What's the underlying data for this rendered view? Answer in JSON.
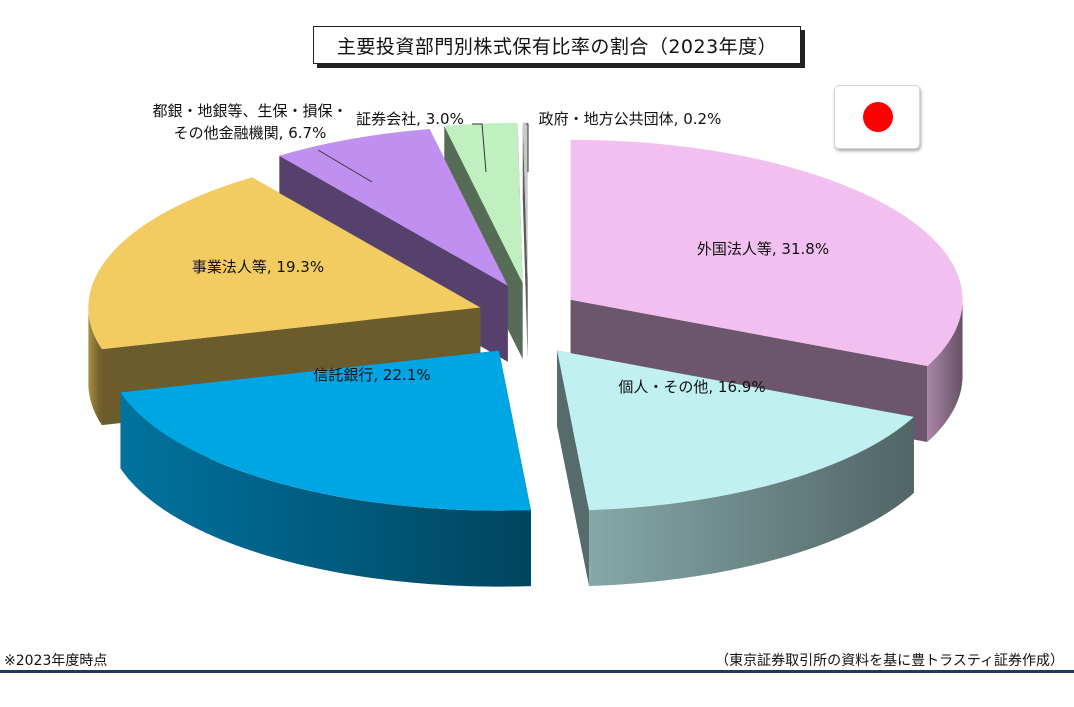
{
  "title": "主要投資部門別株式保有比率の割合（2023年度）",
  "flag_color": "#ff0000",
  "footnote_left": "※2023年度時点",
  "footnote_right": "（東京証券取引所の資料を基に豊トラスティ証券作成）",
  "chart_data": {
    "type": "pie",
    "title": "主要投資部門別株式保有比率の割合（2023年度）",
    "unit": "%",
    "slices": [
      {
        "label": "外国法人等",
        "value": 31.8,
        "color": "#f2c0f0",
        "label_text": "外国法人等, 31.8%"
      },
      {
        "label": "個人・その他",
        "value": 16.9,
        "color": "#c0f0f0",
        "label_text": "個人・その他, 16.9%"
      },
      {
        "label": "信託銀行",
        "value": 22.1,
        "color": "#00a5e3",
        "label_text": "信託銀行, 22.1%"
      },
      {
        "label": "事業法人等",
        "value": 19.3,
        "color": "#f2cc60",
        "label_text": "事業法人等, 19.3%"
      },
      {
        "label": "都銀・地銀等、生保・損保・その他金融機関",
        "value": 6.7,
        "color": "#c090f0",
        "label_lines": [
          "都銀・地銀等、生保・損保・",
          "その他金融機関, 6.7%"
        ]
      },
      {
        "label": "証券会社",
        "value": 3.0,
        "color": "#c0f0c0",
        "label_text": "証券会社, 3.0%"
      },
      {
        "label": "政府・地方公共団体",
        "value": 0.2,
        "color": "#c8c8c8",
        "label_text": "政府・地方公共団体, 0.2%"
      }
    ]
  }
}
